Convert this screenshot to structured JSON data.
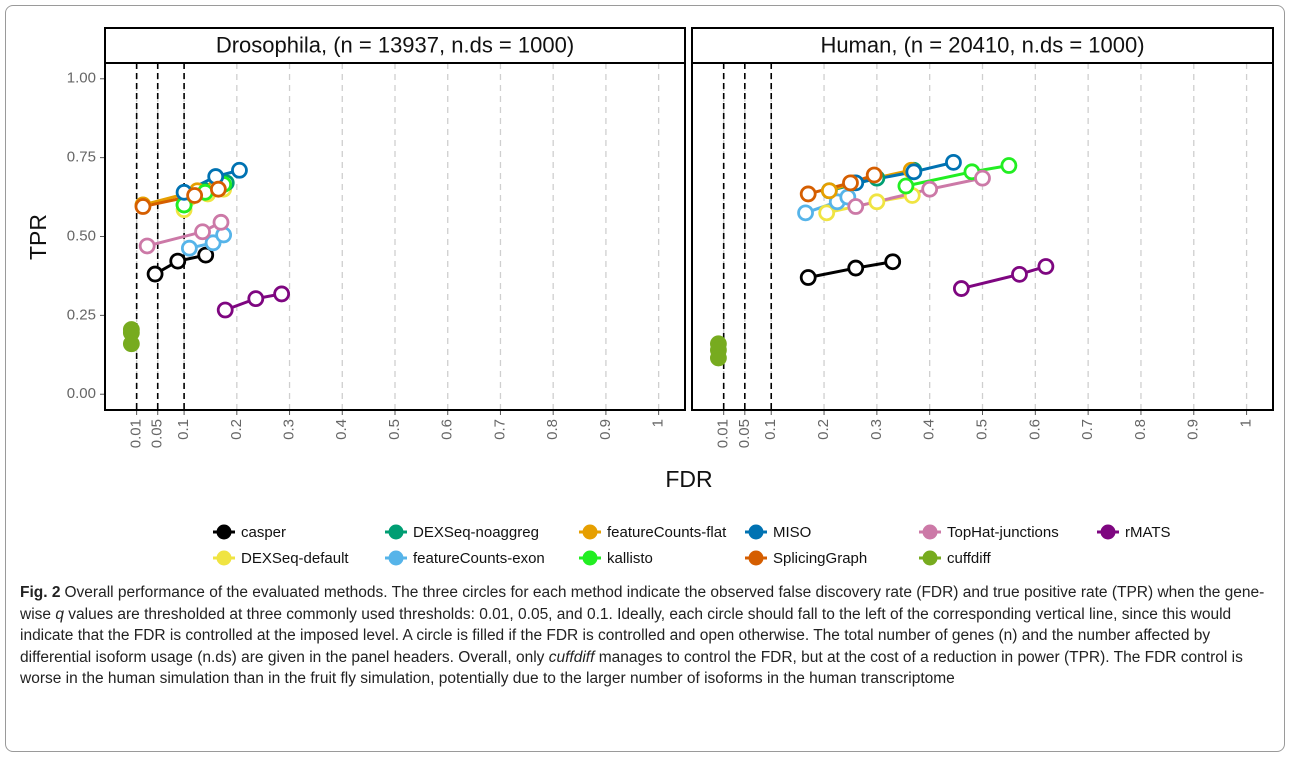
{
  "chart_data": [
    {
      "type": "line",
      "title": "Drosophila, (n = 13937, n.ds = 1000)",
      "xlim": [
        -0.05,
        1.05
      ],
      "xticks": [
        0.01,
        0.05,
        0.1,
        0.2,
        0.3,
        0.4,
        0.5,
        0.6,
        0.7,
        0.8,
        0.9,
        1
      ],
      "ylim": [
        -0.05,
        1.05
      ],
      "yticks": [
        {
          "value": 0,
          "label": "0.00"
        },
        {
          "value": 0.25,
          "label": "0.25"
        },
        {
          "value": 0.5,
          "label": "0.50"
        },
        {
          "value": 0.75,
          "label": "0.75"
        },
        {
          "value": 1,
          "label": "1.00"
        }
      ],
      "vlines": [
        0.01,
        0.05,
        0.1
      ],
      "grid": "x",
      "series": [
        {
          "name": "casper",
          "color": "#000000",
          "x": [
            0.045,
            0.088,
            0.141
          ],
          "values": [
            0.381,
            0.422,
            0.441
          ]
        },
        {
          "name": "DEXSeq-default",
          "color": "#f0e442",
          "x": [
            0.1,
            0.145,
            0.175
          ],
          "values": [
            0.585,
            0.635,
            0.65
          ]
        },
        {
          "name": "DEXSeq-noaggreg",
          "color": "#009e73",
          "x": [
            0.1,
            0.14,
            0.18
          ],
          "values": [
            0.6,
            0.645,
            0.67
          ]
        },
        {
          "name": "featureCounts-exon",
          "color": "#56b4e9",
          "x": [
            0.11,
            0.155,
            0.175
          ],
          "values": [
            0.463,
            0.48,
            0.505
          ]
        },
        {
          "name": "featureCounts-flat",
          "color": "#e69f00",
          "x": [
            0.022,
            0.125,
            0.16
          ],
          "values": [
            0.6,
            0.645,
            0.655
          ]
        },
        {
          "name": "kallisto",
          "color": "#22ee22",
          "x": [
            0.1,
            0.14,
            0.175
          ],
          "values": [
            0.6,
            0.64,
            0.665
          ]
        },
        {
          "name": "MISO",
          "color": "#0072b2",
          "x": [
            0.1,
            0.16,
            0.205
          ],
          "values": [
            0.64,
            0.69,
            0.71
          ]
        },
        {
          "name": "SplicingGraph",
          "color": "#d55e00",
          "x": [
            0.022,
            0.12,
            0.165
          ],
          "values": [
            0.595,
            0.63,
            0.65
          ]
        },
        {
          "name": "TopHat-junctions",
          "color": "#cc79a7",
          "x": [
            0.03,
            0.135,
            0.17
          ],
          "values": [
            0.47,
            0.515,
            0.545
          ]
        },
        {
          "name": "cuffdiff",
          "color": "#77ab1f",
          "x": [
            0,
            0,
            0
          ],
          "values": [
            0.205,
            0.195,
            0.16
          ],
          "filled": true
        },
        {
          "name": "rMATS",
          "color": "#7e0680",
          "x": [
            0.178,
            0.236,
            0.285
          ],
          "values": [
            0.267,
            0.303,
            0.318
          ]
        }
      ]
    },
    {
      "type": "line",
      "title": "Human, (n = 20410, n.ds = 1000)",
      "xlim": [
        -0.05,
        1.05
      ],
      "xticks": [
        0.01,
        0.05,
        0.1,
        0.2,
        0.3,
        0.4,
        0.5,
        0.6,
        0.7,
        0.8,
        0.9,
        1
      ],
      "ylim": [
        -0.05,
        1.05
      ],
      "vlines": [
        0.01,
        0.05,
        0.1
      ],
      "grid": "x",
      "series": [
        {
          "color": "#000000",
          "x": [
            0.17,
            0.26,
            0.33
          ],
          "values": [
            0.37,
            0.4,
            0.42
          ]
        },
        {
          "color": "#f0e442",
          "x": [
            0.205,
            0.3,
            0.367
          ],
          "values": [
            0.575,
            0.61,
            0.63
          ]
        },
        {
          "color": "#009e73",
          "x": [
            0.21,
            0.3,
            0.37
          ],
          "values": [
            0.645,
            0.685,
            0.71
          ]
        },
        {
          "color": "#56b4e9",
          "x": [
            0.165,
            0.225,
            0.245
          ],
          "values": [
            0.575,
            0.61,
            0.625
          ]
        },
        {
          "color": "#e69f00",
          "x": [
            0.21,
            0.255,
            0.365
          ],
          "values": [
            0.645,
            0.67,
            0.71
          ]
        },
        {
          "color": "#22ee22",
          "x": [
            0.355,
            0.48,
            0.55
          ],
          "values": [
            0.66,
            0.705,
            0.725
          ]
        },
        {
          "color": "#0072b2",
          "x": [
            0.26,
            0.37,
            0.445
          ],
          "values": [
            0.67,
            0.705,
            0.735
          ]
        },
        {
          "color": "#d55e00",
          "x": [
            0.17,
            0.25,
            0.295
          ],
          "values": [
            0.635,
            0.67,
            0.695
          ]
        },
        {
          "color": "#cc79a7",
          "x": [
            0.26,
            0.4,
            0.5
          ],
          "values": [
            0.595,
            0.65,
            0.685
          ]
        },
        {
          "color": "#77ab1f",
          "x": [
            0,
            0,
            0
          ],
          "values": [
            0.16,
            0.14,
            0.115
          ],
          "filled": true
        },
        {
          "color": "#7e0680",
          "x": [
            0.46,
            0.57,
            0.62
          ],
          "values": [
            0.335,
            0.38,
            0.405
          ]
        }
      ]
    }
  ],
  "axes": {
    "xlabel": "FDR",
    "ylabel": "TPR"
  },
  "legend": {
    "position": "bottom"
  },
  "caption": {
    "label": "Fig. 2",
    "parts": [
      {
        "text": "Overall performance of the evaluated methods. The three circles for each method indicate the observed false discovery rate (FDR) and true positive rate (TPR) when the gene-wise "
      },
      {
        "text": "q",
        "style": "italic"
      },
      {
        "text": " values are thresholded at three commonly used thresholds: 0.01, 0.05, and 0.1. Ideally, each circle should fall to the left of the corresponding vertical line, since this would indicate that the FDR is controlled at the imposed level. A circle is filled if the FDR is controlled and open otherwise. The total number of genes (n) and the number affected by differential isoform usage (n.ds) are given in the panel headers. Overall, only "
      },
      {
        "text": "cuffdiff",
        "style": "italic"
      },
      {
        "text": " manages to control the FDR, but at the cost of a reduction in power (TPR). The FDR control is worse in the human simulation than in the fruit fly simulation, potentially due to the larger number of isoforms in the human transcriptome"
      }
    ]
  }
}
